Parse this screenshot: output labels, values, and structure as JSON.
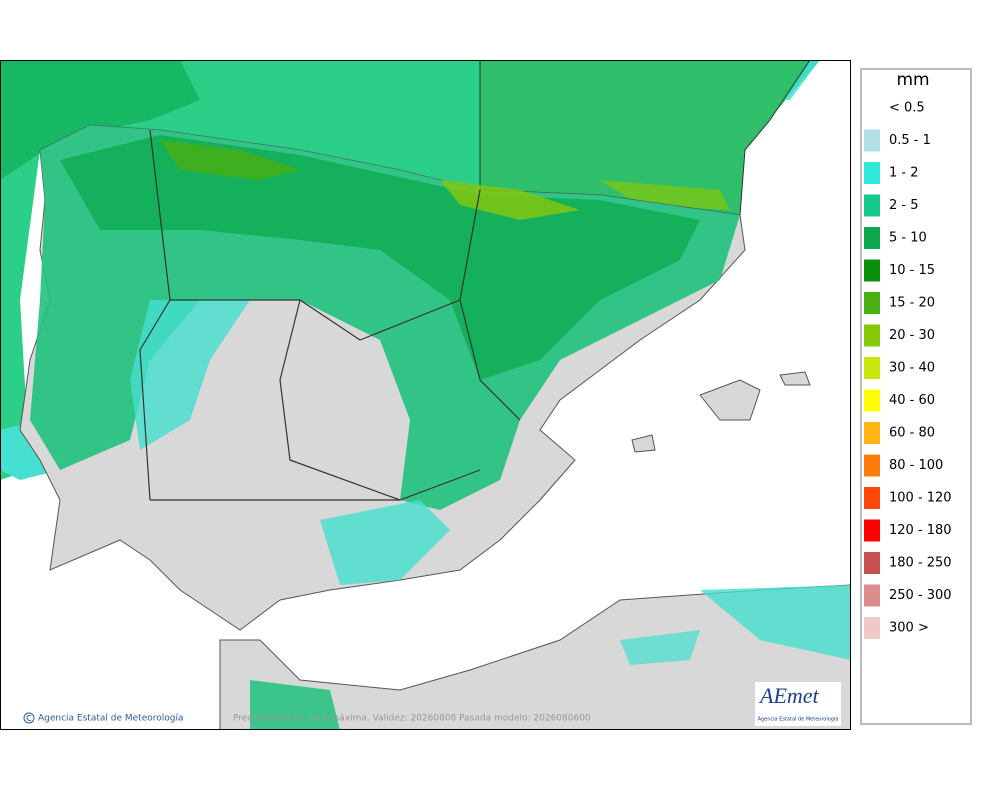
{
  "legend": {
    "title": "mm",
    "items": [
      {
        "label": "< 0.5"
      },
      {
        "label": "0.5 - 1",
        "color": "#b0dfe5"
      },
      {
        "label": "1 - 2",
        "color": "#2ee8d8"
      },
      {
        "label": "2 - 5",
        "color": "#17c98a"
      },
      {
        "label": "5 - 10",
        "color": "#0caa4c"
      },
      {
        "label": "10 - 15",
        "color": "#0a8f0a"
      },
      {
        "label": "15 - 20",
        "color": "#48b010"
      },
      {
        "label": "20 - 30",
        "color": "#86c80a"
      },
      {
        "label": "30 - 40",
        "color": "#c8e60a"
      },
      {
        "label": "40 - 60",
        "color": "#ffff00"
      },
      {
        "label": "60 - 80",
        "color": "#ffb414"
      },
      {
        "label": "80 - 100",
        "color": "#ff7d0a"
      },
      {
        "label": "100 - 120",
        "color": "#ff460a"
      },
      {
        "label": "120 - 180",
        "color": "#ff0000"
      },
      {
        "label": "180 - 250",
        "color": "#c85050"
      },
      {
        "label": "250 - 300",
        "color": "#dc8c8c"
      },
      {
        "label": "300 >",
        "color": "#f0c8c8"
      }
    ]
  },
  "footer": {
    "credit": "Agencia Estatal de Meteorología",
    "caption": "Precipitación en 24 h máxima. Validez: 20260808 Pasada modelo: 2026080600"
  },
  "logo": {
    "name": "AEmet",
    "subtitle": "Agencia Estatal de Meteorología"
  }
}
